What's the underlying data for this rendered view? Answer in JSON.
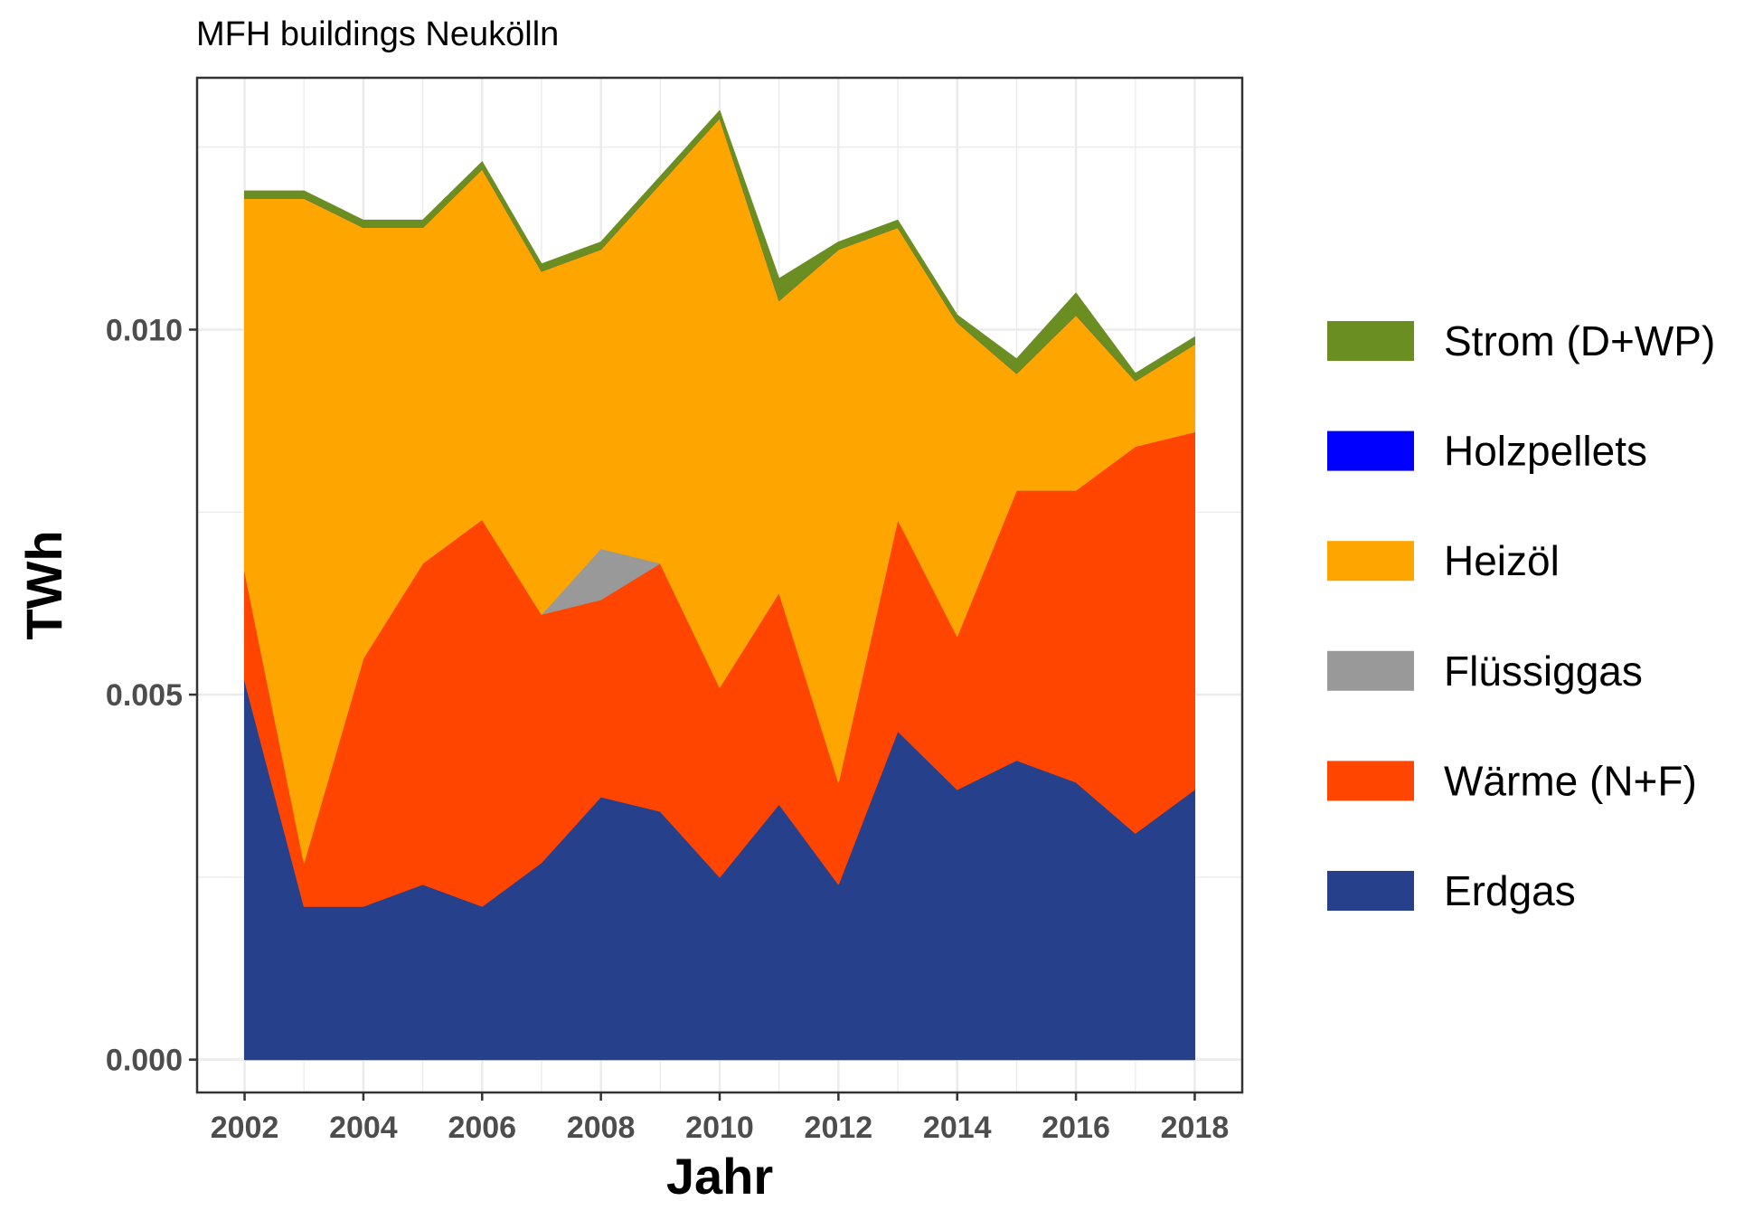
{
  "chart_data": {
    "type": "area",
    "stacked": true,
    "subtitle": "MFH buildings Neukölln",
    "xlabel": "Jahr",
    "ylabel": "TWh",
    "x": [
      2002,
      2003,
      2004,
      2005,
      2006,
      2007,
      2008,
      2009,
      2010,
      2011,
      2012,
      2013,
      2014,
      2015,
      2016,
      2017,
      2018
    ],
    "xlim": [
      2001.2,
      2018.8
    ],
    "ylim": [
      -0.00045,
      0.01345
    ],
    "x_ticks": [
      "2002",
      "2004",
      "2006",
      "2008",
      "2010",
      "2012",
      "2014",
      "2016",
      "2018"
    ],
    "y_ticks": [
      "0.000",
      "0.005",
      "0.010"
    ],
    "grid": true,
    "legend_position": "right",
    "series": [
      {
        "name": "Erdgas",
        "color": "#27408B",
        "values": [
          0.0052,
          0.0021,
          0.0021,
          0.0024,
          0.0021,
          0.0027,
          0.0036,
          0.0034,
          0.0025,
          0.0035,
          0.0024,
          0.0045,
          0.0037,
          0.0041,
          0.0038,
          0.0031,
          0.0037
        ]
      },
      {
        "name": "Wärme (N+F)",
        "color": "#FF4500",
        "values": [
          0.0015,
          0.0006,
          0.0034,
          0.0044,
          0.0053,
          0.0034,
          0.0027,
          0.0034,
          0.0026,
          0.0029,
          0.0014,
          0.0029,
          0.0021,
          0.0037,
          0.004,
          0.0053,
          0.0049
        ]
      },
      {
        "name": "Flüssiggas",
        "color": "#999999",
        "values": [
          0,
          0,
          0,
          0,
          0,
          0,
          0.0007,
          0,
          0,
          0,
          0,
          0,
          0,
          0,
          0,
          0,
          0
        ]
      },
      {
        "name": "Heizöl",
        "color": "#FFA500",
        "values": [
          0.0051,
          0.0091,
          0.0059,
          0.0046,
          0.0048,
          0.0047,
          0.0041,
          0.0052,
          0.0078,
          0.004,
          0.0073,
          0.004,
          0.0043,
          0.0016,
          0.0024,
          0.0009,
          0.0012
        ]
      },
      {
        "name": "Holzpellets",
        "color": "#0000FF",
        "values": [
          0,
          0,
          0,
          0,
          0,
          0,
          0,
          0,
          0,
          0,
          0,
          0,
          0,
          0,
          0,
          0,
          0
        ]
      },
      {
        "name": "Strom (D+WP)",
        "color": "#6B8E23",
        "values": [
          0.0001,
          0.0001,
          0.0001,
          0.0001,
          0.0001,
          0.0001,
          0.0001,
          0.0001,
          0.0001,
          0.0003,
          0.0001,
          0.0001,
          0.0001,
          0.0002,
          0.0003,
          0.0001,
          0.0001
        ]
      }
    ],
    "legend_order": [
      "Strom (D+WP)",
      "Holzpellets",
      "Heizöl",
      "Flüssiggas",
      "Wärme (N+F)",
      "Erdgas"
    ]
  }
}
